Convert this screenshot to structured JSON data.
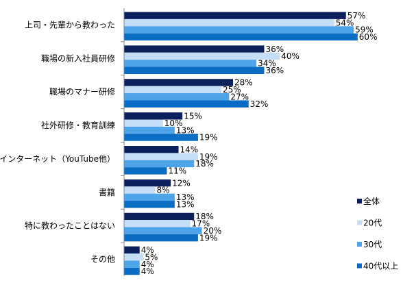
{
  "chart_data": {
    "type": "bar",
    "orientation": "horizontal",
    "categories": [
      "上司・先輩から教わった",
      "職場の新入社員研修",
      "職場のマナー研修",
      "社外研修・教育訓練",
      "インターネット（YouTube他）",
      "書籍",
      "特に教わったことはない",
      "その他"
    ],
    "series": [
      {
        "name": "全体",
        "color": "#0a1f5c",
        "values": [
          57,
          36,
          28,
          15,
          14,
          12,
          18,
          4
        ]
      },
      {
        "name": "20代",
        "color": "#c5ddf5",
        "values": [
          54,
          40,
          25,
          10,
          19,
          8,
          17,
          5
        ]
      },
      {
        "name": "30代",
        "color": "#4fa3e8",
        "values": [
          59,
          34,
          27,
          13,
          18,
          13,
          20,
          4
        ]
      },
      {
        "name": "40代以上",
        "color": "#0b6cc3",
        "values": [
          60,
          36,
          32,
          19,
          11,
          13,
          19,
          4
        ]
      }
    ],
    "value_suffix": "%",
    "xlim": [
      0,
      60
    ],
    "grid": false,
    "legend_position": "bottom-right"
  }
}
